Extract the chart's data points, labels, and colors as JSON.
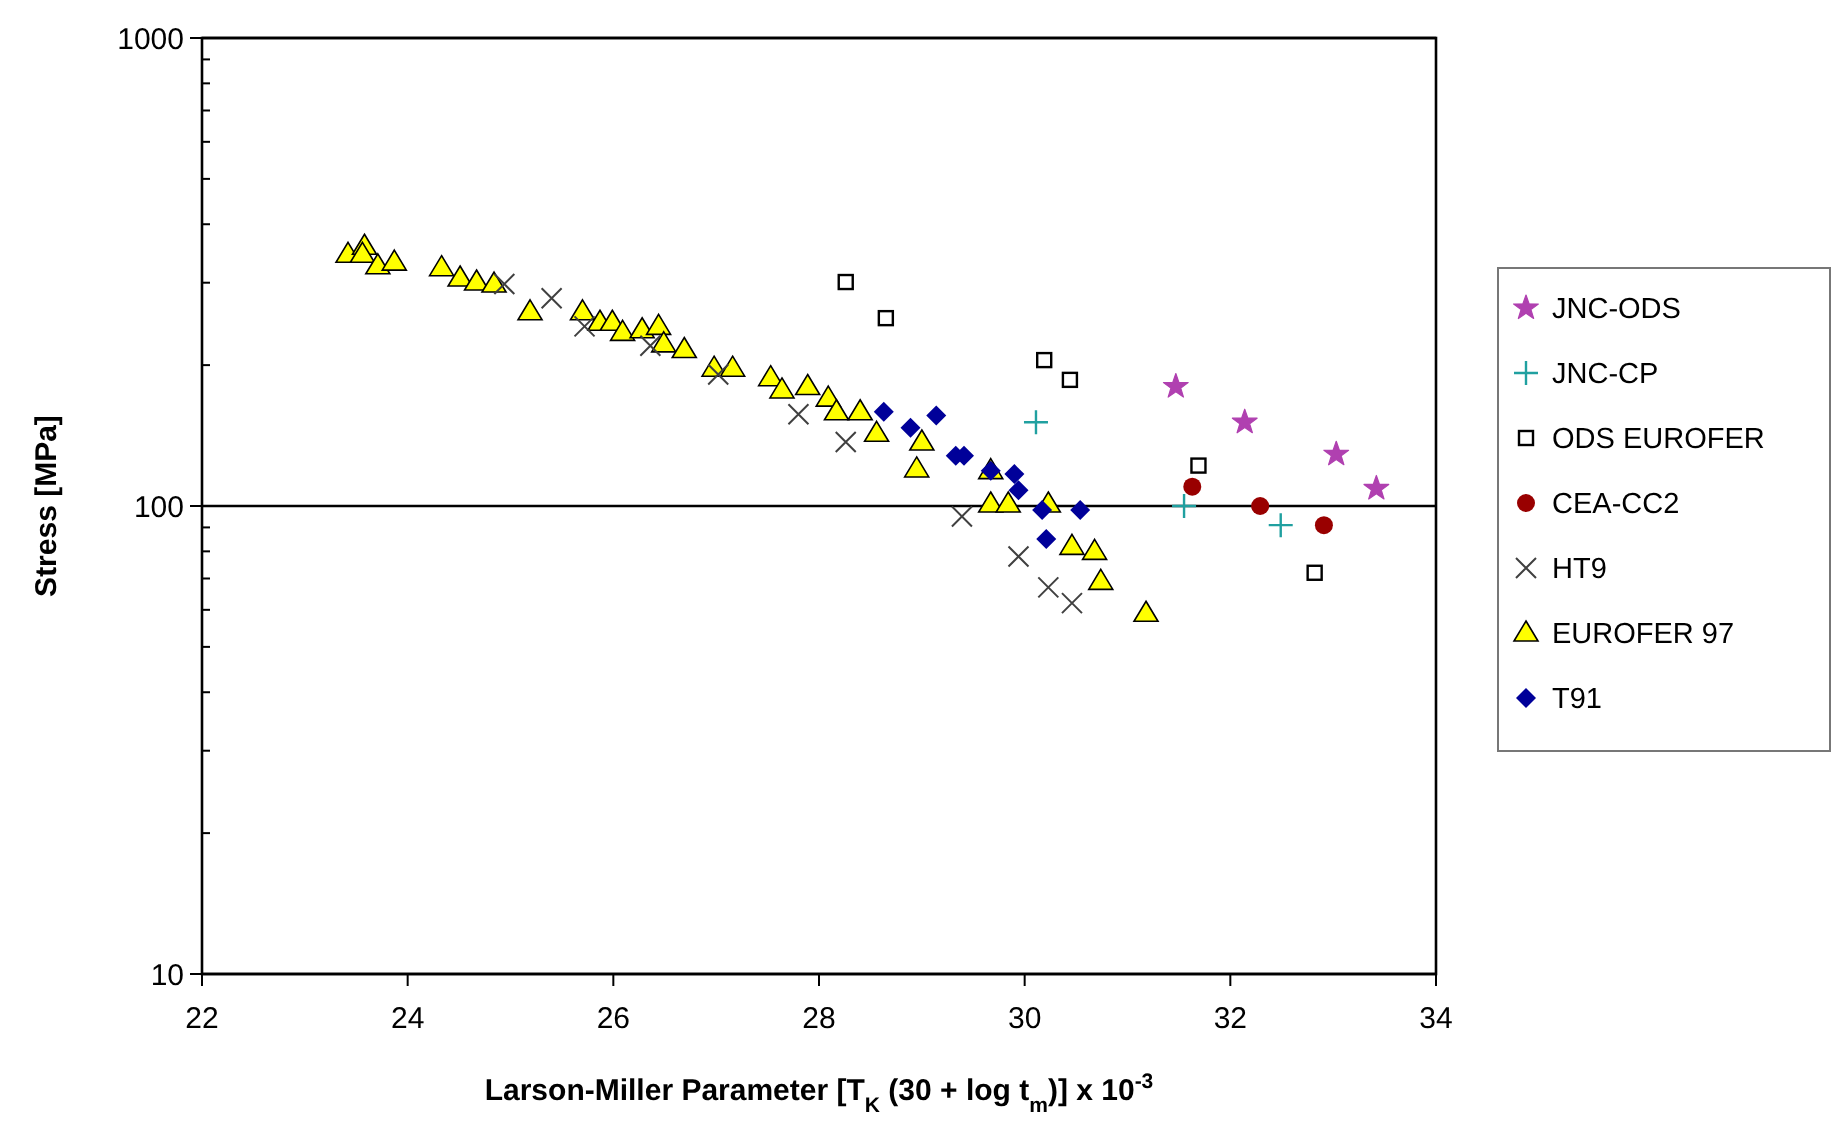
{
  "chart_data": {
    "type": "scatter",
    "xlabel": "Larson-Miller Parameter [T$_{K}$ (30 + log t$_{m}$)] x 10$^{-3}$",
    "ylabel": "Stress [MPa]",
    "log": "y",
    "grid": "y",
    "legend": "right",
    "xlim": [
      22,
      34
    ],
    "xticks": [
      22,
      24,
      26,
      28,
      30,
      32,
      34
    ],
    "ylim": [
      10,
      1000
    ],
    "yticks": [
      10,
      {
        "value": 20,
        "label": null
      },
      {
        "value": 30,
        "label": null
      },
      {
        "value": 40,
        "label": null
      },
      {
        "value": 50,
        "label": null
      },
      {
        "value": 60,
        "label": null
      },
      {
        "value": 70,
        "label": null
      },
      {
        "value": 80,
        "label": null
      },
      {
        "value": 90,
        "label": null
      },
      100,
      {
        "value": 200,
        "label": null
      },
      {
        "value": 300,
        "label": null
      },
      {
        "value": 400,
        "label": null
      },
      {
        "value": 500,
        "label": null
      },
      {
        "value": 600,
        "label": null
      },
      {
        "value": 700,
        "label": null
      },
      {
        "value": 800,
        "label": null
      },
      {
        "value": 900,
        "label": null
      },
      1000
    ],
    "series": [
      {
        "name": "JNC-ODS",
        "color": "#b040b0",
        "marker": "star",
        "x": [
          31.47,
          32.14,
          33.03,
          33.42
        ],
        "values": [
          180,
          151,
          129,
          109
        ]
      },
      {
        "name": "JNC-CP",
        "color": "#20a0a0",
        "marker": "plus",
        "x": [
          30.11,
          31.55,
          32.49
        ],
        "values": [
          151,
          100,
          91
        ]
      },
      {
        "name": "ODS EUROFER",
        "color": "#000000",
        "marker": "square",
        "x": [
          28.26,
          28.65,
          30.19,
          30.44,
          31.69,
          32.82
        ],
        "values": [
          301,
          252,
          205,
          186,
          122,
          72
        ]
      },
      {
        "name": "CEA-CC2",
        "color": "#990000",
        "marker": "circle",
        "x": [
          31.63,
          32.29,
          32.91
        ],
        "values": [
          110,
          100,
          91
        ]
      },
      {
        "name": "HT9",
        "color": "#404040",
        "marker": "cross",
        "x": [
          24.94,
          25.4,
          25.72,
          26.36,
          27.02,
          27.8,
          28.26,
          29.39,
          29.94,
          30.23,
          30.46
        ],
        "values": [
          298,
          278,
          242,
          220,
          191,
          157,
          137,
          95,
          78,
          67,
          62
        ]
      },
      {
        "name": "EUROFER 97",
        "color": "#ffff00",
        "marker": "triangle",
        "x": [
          23.42,
          23.58,
          23.56,
          23.71,
          23.87,
          24.33,
          24.51,
          24.67,
          24.84,
          25.19,
          25.7,
          25.87,
          25.99,
          26.09,
          26.28,
          26.44,
          26.49,
          26.69,
          26.98,
          27.16,
          27.53,
          27.64,
          27.89,
          28.09,
          28.17,
          28.4,
          28.56,
          29.0,
          28.95,
          29.67,
          29.67,
          29.84,
          30.23,
          30.46,
          30.68,
          30.74,
          31.18
        ],
        "values": [
          345,
          359,
          345,
          326,
          332,
          323,
          307,
          301,
          298,
          260,
          260,
          247,
          247,
          235,
          238,
          242,
          222,
          216,
          197,
          197,
          188,
          177,
          180,
          170,
          159,
          159,
          143,
          137,
          120,
          119,
          101,
          101,
          101,
          82,
          80,
          69,
          59
        ]
      },
      {
        "name": "T91",
        "color": "#000099",
        "marker": "diamond",
        "x": [
          28.63,
          28.89,
          29.14,
          29.33,
          29.41,
          29.67,
          29.9,
          29.94,
          30.17,
          30.21,
          30.54
        ],
        "values": [
          159,
          147,
          156,
          128,
          128,
          119,
          117,
          108,
          98,
          85,
          98
        ]
      }
    ]
  }
}
